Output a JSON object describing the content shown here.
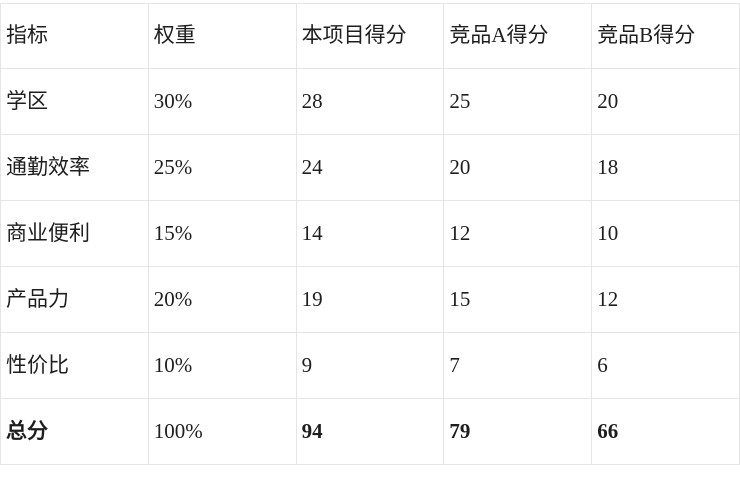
{
  "table": {
    "columns": [
      "指标",
      "权重",
      "本项目得分",
      "竞品A得分",
      "竞品B得分"
    ],
    "rows": [
      {
        "cells": [
          "学区",
          "30%",
          "28",
          "25",
          "20"
        ],
        "bold_cells": []
      },
      {
        "cells": [
          "通勤效率",
          "25%",
          "24",
          "20",
          "18"
        ],
        "bold_cells": []
      },
      {
        "cells": [
          "商业便利",
          "15%",
          "14",
          "12",
          "10"
        ],
        "bold_cells": []
      },
      {
        "cells": [
          "产品力",
          "20%",
          "19",
          "15",
          "12"
        ],
        "bold_cells": []
      },
      {
        "cells": [
          "性价比",
          "10%",
          "9",
          "7",
          "6"
        ],
        "bold_cells": []
      },
      {
        "cells": [
          "总分",
          "100%",
          "94",
          "79",
          "66"
        ],
        "bold_cells": [
          0,
          2,
          3,
          4
        ]
      }
    ]
  },
  "colors": {
    "border": "#e5e5e5",
    "text": "#1e1e1e",
    "background": "#ffffff"
  }
}
